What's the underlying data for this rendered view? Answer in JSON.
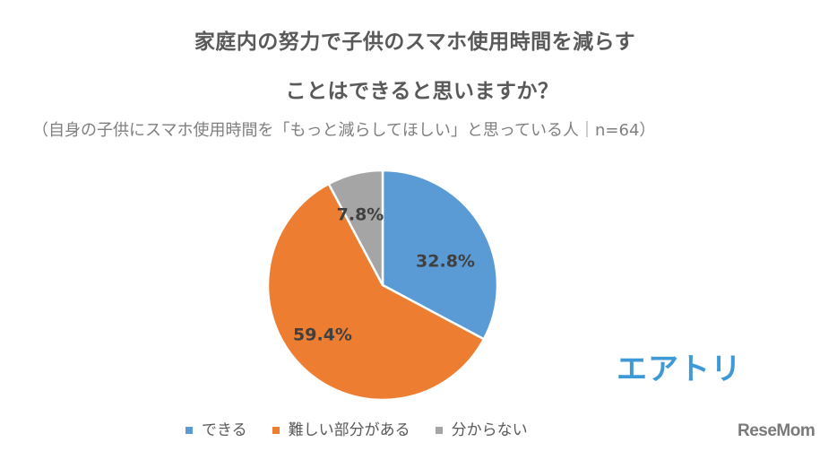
{
  "title": {
    "line1": "家庭内の努力で子供のスマホ使用時間を減らす",
    "line2": "ことはできると思いますか？"
  },
  "subtitle": "（自身の子供にスマホ使用時間を「もっと減らしてほしい」と思っている人｜n=64）",
  "chart_data": {
    "type": "pie",
    "title": "家庭内の努力で子供のスマホ使用時間を減らすことはできると思いますか？",
    "subtitle": "（自身の子供にスマホ使用時間を「もっと減らしてほしい」と思っている人｜n=64）",
    "categories": [
      "できる",
      "難しい部分がある",
      "分からない"
    ],
    "values": [
      32.8,
      59.4,
      7.8
    ],
    "labels": [
      "32.8%",
      "59.4%",
      "7.8%"
    ],
    "colors": [
      "#5b9bd5",
      "#ed7d31",
      "#a5a5a5"
    ],
    "start_angle": "12 o'clock, clockwise",
    "legend_position": "bottom",
    "n": 64
  },
  "legend": [
    {
      "label": "できる",
      "color": "#5b9bd5"
    },
    {
      "label": "難しい部分がある",
      "color": "#ed7d31"
    },
    {
      "label": "分からない",
      "color": "#a5a5a5"
    }
  ],
  "brands": {
    "airtrip": "エアトリ",
    "resemom": "ReseMom"
  }
}
